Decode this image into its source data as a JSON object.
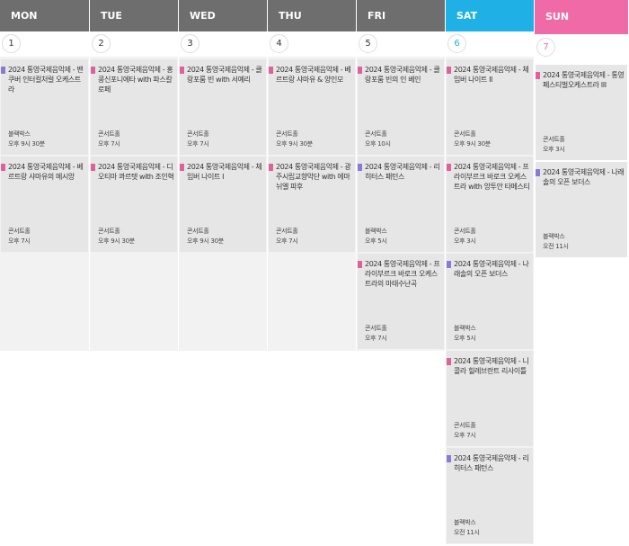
{
  "days": [
    {
      "name": "MON",
      "date": "1",
      "events": [
        {
          "title": "2024 통영국제음악제 - 밴쿠버 인터컬처럴 오케스트라",
          "venue": "블랙박스",
          "time": "오후 9시 30분",
          "color": "#8a7ad8"
        },
        {
          "title": "2024 통영국제음악제 - 베르트랑 샤마유의 메시앙",
          "venue": "콘서트홀",
          "time": "오후 7시",
          "color": "#e0609a"
        }
      ]
    },
    {
      "name": "TUE",
      "date": "2",
      "events": [
        {
          "title": "2024 통영국제음악제 - 홍콩신포니에타 with 파스칼 로페",
          "venue": "콘서트홀",
          "time": "오후 7시",
          "color": "#e0609a"
        },
        {
          "title": "2024 통영국제음악제 - 디오티마 콰르텟 with 조인혁",
          "venue": "콘서트홀",
          "time": "오후 9시 30분",
          "color": "#e0609a"
        }
      ]
    },
    {
      "name": "WED",
      "date": "3",
      "events": [
        {
          "title": "2024 통영국제음악제 - 클랑포룸 빈 with 서예리",
          "venue": "콘서트홀",
          "time": "오후 7시",
          "color": "#e0609a"
        },
        {
          "title": "2024 통영국제음악제 - 체임버 나이트 I",
          "venue": "콘서트홀",
          "time": "오후 9시 30분",
          "color": "#e0609a"
        }
      ]
    },
    {
      "name": "THU",
      "date": "4",
      "events": [
        {
          "title": "2024 통영국제음악제 - 베르트랑 샤마유 & 양인모",
          "venue": "콘서트홀",
          "time": "오후 9시 30분",
          "color": "#e0609a"
        },
        {
          "title": "2024 통영국제음악제 - 광주시립교향악단 with 에마뉘엘 파후",
          "venue": "콘서트홀",
          "time": "오후 7시",
          "color": "#e0609a"
        }
      ]
    },
    {
      "name": "FRI",
      "date": "5",
      "events": [
        {
          "title": "2024 통영국제음악제 - 클랑포룸 빈의 인 베인",
          "venue": "콘서트홀",
          "time": "오후 10시",
          "color": "#e0609a"
        },
        {
          "title": "2024 통영국제음악제 - 리히터스 패턴스",
          "venue": "블랙박스",
          "time": "오후 5시",
          "color": "#8a7ad8"
        },
        {
          "title": "2024 통영국제음악제 - 프라이부르크 바로크 오케스트라의 마태수난곡",
          "venue": "콘서트홀",
          "time": "오후 7시",
          "color": "#e0609a"
        }
      ]
    },
    {
      "name": "SAT",
      "date": "6",
      "events": [
        {
          "title": "2024 통영국제음악제 - 체임버 나이트 II",
          "venue": "콘서트홀",
          "time": "오후 9시 30분",
          "color": "#e0609a"
        },
        {
          "title": "2024 통영국제음악제 - 프라이부르크 바로크 오케스트라 with 앙투안 타메스티",
          "venue": "콘서트홀",
          "time": "오후 3시",
          "color": "#e0609a"
        },
        {
          "title": "2024 통영국제음악제 - 나래솔의 오픈 보더스",
          "venue": "블랙박스",
          "time": "오후 5시",
          "color": "#8a7ad8"
        },
        {
          "title": "2024 통영국제음악제 - 니콜라 힐레브란트 리사이틀",
          "venue": "콘서트홀",
          "time": "오후 7시",
          "color": "#e0609a"
        },
        {
          "title": "2024 통영국제음악제 - 리히터스 패턴스",
          "venue": "블랙박스",
          "time": "오전 11시",
          "color": "#8a7ad8"
        }
      ]
    },
    {
      "name": "SUN",
      "date": "7",
      "events": [
        {
          "title": "2024 통영국제음악제 - 통영페스티벌오케스트라 III",
          "venue": "콘서트홀",
          "time": "오후 3시",
          "color": "#e0609a"
        },
        {
          "title": "2024 통영국제음악제 - 나래솔의 오픈 보더스",
          "venue": "블랙박스",
          "time": "오전 11시",
          "color": "#8a7ad8"
        }
      ]
    }
  ]
}
